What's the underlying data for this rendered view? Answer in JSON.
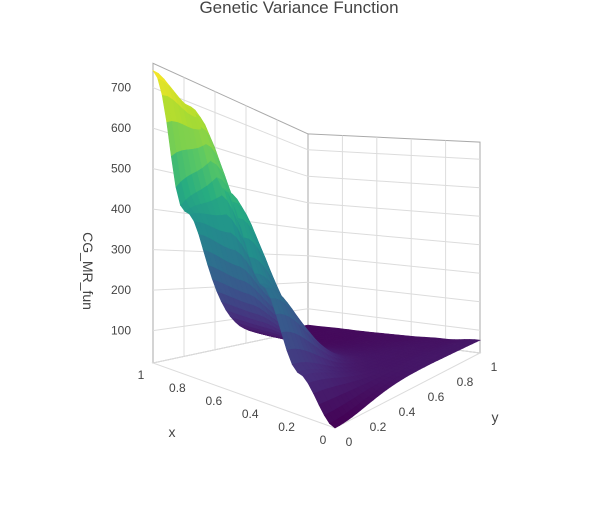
{
  "chart_data": {
    "type": "surface",
    "title": "Genetic Variance Function",
    "xlabel": "x",
    "ylabel": "y",
    "zlabel": "CG_MR_fun",
    "x_ticks": [
      "0",
      "0.2",
      "0.4",
      "0.6",
      "0.8",
      "1"
    ],
    "y_ticks": [
      "0",
      "0.2",
      "0.4",
      "0.6",
      "0.8",
      "1"
    ],
    "z_ticks": [
      "100",
      "200",
      "300",
      "400",
      "500",
      "600",
      "700"
    ],
    "xlim": [
      0,
      1
    ],
    "ylim": [
      0,
      1
    ],
    "zlim": [
      20,
      760
    ],
    "colorscale": [
      "#440154",
      "#472d7b",
      "#3b528b",
      "#2c728e",
      "#21918c",
      "#28ae80",
      "#5ec962",
      "#addc30",
      "#fde725"
    ],
    "grid": true,
    "surface_profile": {
      "along_x_at_y0": [
        20,
        120,
        300,
        500,
        680,
        745
      ],
      "along_x_at_y1": [
        65,
        50,
        45,
        45,
        45,
        40
      ],
      "x": [
        0,
        0.2,
        0.4,
        0.6,
        0.8,
        1
      ],
      "peak": {
        "x": 0.95,
        "y": 0.05,
        "z": 745
      },
      "ridge_shoulder_height": 130
    }
  }
}
